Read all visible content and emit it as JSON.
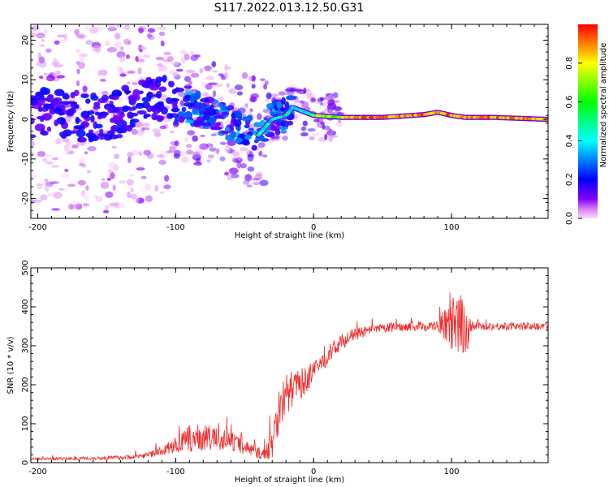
{
  "title": "S117.2022.013.12.50.G31",
  "colors": {
    "snr_line": "#ee2a2a",
    "axis": "#000000",
    "background": "#ffffff"
  },
  "chart_data": [
    {
      "type": "heatmap",
      "xlabel": "Height of straight line (km)",
      "ylabel": "Frequency (Hz)",
      "xlim": [
        -205,
        170
      ],
      "ylim": [
        -25,
        24
      ],
      "xticks": [
        "-200",
        "-100",
        "0",
        "100"
      ],
      "yticks": [
        "-20",
        "-10",
        "0",
        "10",
        "20"
      ],
      "xtick_values": [
        -200,
        -100,
        0,
        100
      ],
      "ytick_values": [
        -20,
        -10,
        0,
        10,
        20
      ],
      "ridge_frequency_hz": {
        "x": [
          -205,
          -150,
          -110,
          -100,
          -80,
          -60,
          -40,
          -30,
          -20,
          -15,
          0,
          20,
          50,
          80,
          90,
          100,
          110,
          130,
          170
        ],
        "y": [
          1.5,
          0.5,
          5,
          4,
          2,
          -1,
          -4,
          0,
          1,
          3,
          1,
          0.5,
          0.5,
          1.2,
          1.8,
          1.0,
          0.5,
          0.5,
          0
        ]
      },
      "colorbar": {
        "label": "Normalized spectral amplitude",
        "ticks": [
          "0.0",
          "0.2",
          "0.4",
          "0.6",
          "0.8"
        ],
        "tick_values": [
          0,
          0.2,
          0.4,
          0.6,
          0.8
        ],
        "range": [
          0,
          1
        ],
        "colormap": "gist_rainbow"
      },
      "grid": false
    },
    {
      "type": "line",
      "xlabel": "Height of straight line (km)",
      "ylabel": "SNR (10 * v/v)",
      "xlim": [
        -205,
        170
      ],
      "ylim": [
        0,
        500
      ],
      "xticks": [
        "-200",
        "-100",
        "0",
        "100"
      ],
      "yticks": [
        "0",
        "100",
        "200",
        "300",
        "400",
        "500"
      ],
      "xtick_values": [
        -200,
        -100,
        0,
        100
      ],
      "ytick_values": [
        0,
        100,
        200,
        300,
        400,
        500
      ],
      "series": [
        {
          "color": "#ee2a2a",
          "x": [
            -205,
            -180,
            -150,
            -130,
            -120,
            -110,
            -100,
            -90,
            -80,
            -70,
            -60,
            -50,
            -40,
            -35,
            -30,
            -25,
            -20,
            -15,
            -10,
            -5,
            0,
            10,
            20,
            30,
            50,
            70,
            90,
            95,
            100,
            105,
            110,
            115,
            120,
            150,
            170
          ],
          "y": [
            10,
            10,
            12,
            15,
            20,
            30,
            45,
            60,
            65,
            60,
            55,
            40,
            25,
            20,
            60,
            140,
            175,
            190,
            200,
            215,
            230,
            275,
            310,
            330,
            345,
            350,
            350,
            355,
            350,
            345,
            345,
            350,
            350,
            350,
            350
          ],
          "noise": [
            3,
            4,
            5,
            6,
            8,
            12,
            20,
            35,
            35,
            30,
            25,
            20,
            15,
            15,
            50,
            60,
            55,
            45,
            40,
            35,
            30,
            25,
            20,
            15,
            12,
            12,
            15,
            40,
            70,
            90,
            80,
            15,
            10,
            10,
            10
          ]
        }
      ],
      "grid": false
    }
  ]
}
